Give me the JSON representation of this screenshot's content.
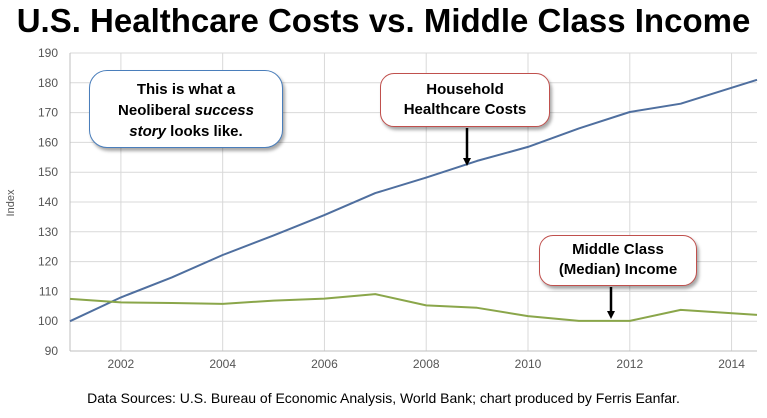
{
  "page": {
    "title": "U.S. Healthcare Costs vs. Middle Class Income",
    "source_note": "Data Sources: U.S. Bureau of Economic Analysis, World Bank; chart produced by Ferris Eanfar."
  },
  "annotations": {
    "neoliberal": {
      "line1": "This is what a",
      "line2_prefix": "Neoliberal ",
      "line2_emph": "success",
      "line3_emph": "story",
      "line3_suffix": " looks like."
    },
    "healthcare": {
      "line1": "Household",
      "line2": "Healthcare Costs"
    },
    "income": {
      "line1": "Middle Class",
      "line2": "(Median) Income"
    }
  },
  "chart_data": {
    "type": "line",
    "title": "U.S. Healthcare Costs vs. Middle Class Income",
    "xlabel": "",
    "ylabel": "Index",
    "xlim": [
      2001,
      2014.5
    ],
    "ylim": [
      90,
      190
    ],
    "x_ticks": [
      2002,
      2004,
      2006,
      2008,
      2010,
      2012,
      2014
    ],
    "y_ticks": [
      90,
      100,
      110,
      120,
      130,
      140,
      150,
      160,
      170,
      180,
      190
    ],
    "grid": true,
    "legend": "none",
    "series": [
      {
        "name": "Household Healthcare Costs",
        "color": "#4f6f9f",
        "x": [
          2001,
          2002,
          2003,
          2004,
          2005,
          2006,
          2007,
          2008,
          2009,
          2010,
          2011,
          2012,
          2013,
          2014.5
        ],
        "y": [
          100,
          108,
          114.7,
          122.2,
          128.8,
          135.6,
          143,
          148.2,
          153.8,
          158.5,
          164.7,
          170.2,
          173,
          181
        ]
      },
      {
        "name": "Middle Class (Median) Income",
        "color": "#8aa64a",
        "x": [
          2001,
          2002,
          2003,
          2004,
          2005,
          2006,
          2007,
          2008,
          2009,
          2010,
          2011,
          2012,
          2013,
          2014.5
        ],
        "y": [
          107.5,
          106.3,
          106.1,
          105.8,
          106.9,
          107.6,
          109.1,
          105.3,
          104.5,
          101.7,
          100.1,
          100.1,
          103.8,
          102.1
        ]
      }
    ]
  }
}
